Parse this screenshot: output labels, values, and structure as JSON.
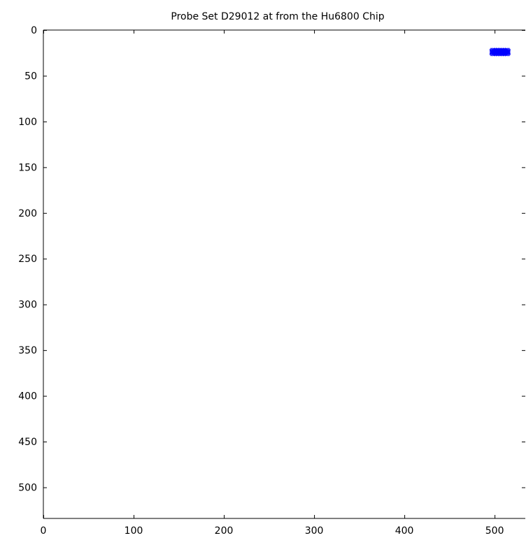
{
  "chart_data": {
    "type": "scatter",
    "title": "Probe Set D29012 at from the Hu6800 Chip",
    "xlabel": "",
    "ylabel": "",
    "xlim": [
      0,
      534
    ],
    "ylim": [
      0,
      534
    ],
    "y_axis_inverted": true,
    "x_ticks": [
      0,
      100,
      200,
      300,
      400,
      500
    ],
    "y_ticks": [
      0,
      50,
      100,
      150,
      200,
      250,
      300,
      350,
      400,
      450,
      500
    ],
    "grid": false,
    "legend": "none",
    "marker": "x",
    "series": [
      {
        "color": "#0000ff",
        "points": [
          [
            498,
            22
          ],
          [
            500,
            22
          ],
          [
            502,
            22
          ],
          [
            504,
            22
          ],
          [
            506,
            22
          ],
          [
            508,
            22
          ],
          [
            510,
            22
          ],
          [
            512,
            22
          ],
          [
            514,
            22
          ],
          [
            497,
            23
          ],
          [
            499,
            23
          ],
          [
            501,
            23
          ],
          [
            503,
            23
          ],
          [
            505,
            23
          ],
          [
            507,
            23
          ],
          [
            509,
            23
          ],
          [
            511,
            23
          ],
          [
            513,
            23
          ],
          [
            515,
            23
          ],
          [
            497,
            24
          ],
          [
            499,
            24
          ],
          [
            501,
            24
          ],
          [
            503,
            24
          ],
          [
            505,
            24
          ],
          [
            507,
            24
          ],
          [
            509,
            24
          ],
          [
            511,
            24
          ],
          [
            513,
            24
          ],
          [
            515,
            24
          ],
          [
            497,
            25
          ],
          [
            499,
            25
          ],
          [
            501,
            25
          ],
          [
            503,
            25
          ],
          [
            505,
            25
          ],
          [
            507,
            25
          ],
          [
            509,
            25
          ],
          [
            511,
            25
          ],
          [
            513,
            25
          ],
          [
            515,
            25
          ],
          [
            498,
            26
          ],
          [
            500,
            26
          ],
          [
            502,
            26
          ],
          [
            504,
            26
          ],
          [
            506,
            26
          ],
          [
            508,
            26
          ],
          [
            510,
            26
          ],
          [
            512,
            26
          ],
          [
            514,
            26
          ]
        ]
      }
    ]
  }
}
